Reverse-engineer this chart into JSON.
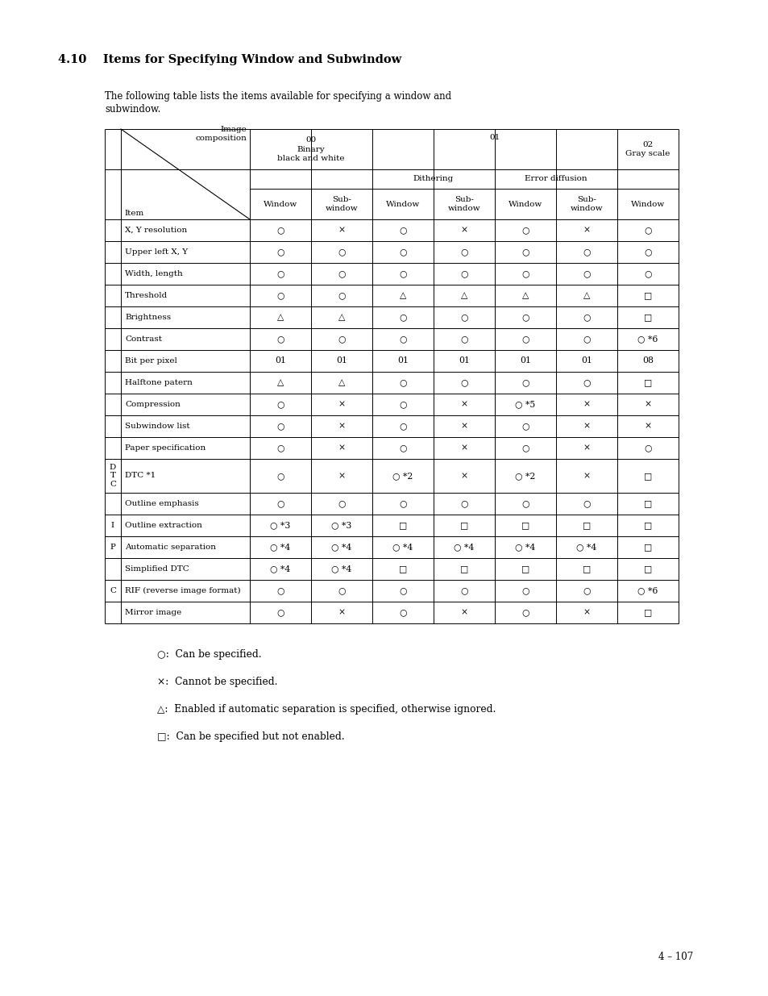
{
  "title": "4.10    Items for Specifying Window and Subwindow",
  "intro_line1": "The following table lists the items available for specifying a window and",
  "intro_line2": "subwindow.",
  "page_number": "4 – 107",
  "legend": [
    [
      "○",
      "Can be specified."
    ],
    [
      "×",
      "Cannot be specified."
    ],
    [
      "△",
      "Enabled if automatic separation is specified, otherwise ignored."
    ],
    [
      "□",
      "Can be specified but not enabled."
    ]
  ],
  "rows": [
    [
      "X, Y resolution",
      "○",
      "×",
      "○",
      "×",
      "○",
      "×",
      "○"
    ],
    [
      "Upper left X, Y",
      "○",
      "○",
      "○",
      "○",
      "○",
      "○",
      "○"
    ],
    [
      "Width, length",
      "○",
      "○",
      "○",
      "○",
      "○",
      "○",
      "○"
    ],
    [
      "Threshold",
      "○",
      "○",
      "△",
      "△",
      "△",
      "△",
      "□"
    ],
    [
      "Brightness",
      "△",
      "△",
      "○",
      "○",
      "○",
      "○",
      "□"
    ],
    [
      "Contrast",
      "○",
      "○",
      "○",
      "○",
      "○",
      "○",
      "○ *6"
    ],
    [
      "Bit per pixel",
      "01",
      "01",
      "01",
      "01",
      "01",
      "01",
      "08"
    ],
    [
      "Halftone patern",
      "△",
      "△",
      "○",
      "○",
      "○",
      "○",
      "□"
    ],
    [
      "Compression",
      "○",
      "×",
      "○",
      "×",
      "○ *5",
      "×",
      "×"
    ],
    [
      "Subwindow list",
      "○",
      "×",
      "○",
      "×",
      "○",
      "×",
      "×"
    ],
    [
      "Paper specification",
      "○",
      "×",
      "○",
      "×",
      "○",
      "×",
      "○"
    ],
    [
      "DTC *1",
      "○",
      "×",
      "○ *2",
      "×",
      "○ *2",
      "×",
      "□"
    ],
    [
      "Outline emphasis",
      "○",
      "○",
      "○",
      "○",
      "○",
      "○",
      "□"
    ],
    [
      "Outline extraction",
      "○ *3",
      "○ *3",
      "□",
      "□",
      "□",
      "□",
      "□"
    ],
    [
      "Automatic separation",
      "○ *4",
      "○ *4",
      "○ *4",
      "○ *4",
      "○ *4",
      "○ *4",
      "□"
    ],
    [
      "Simplified DTC",
      "○ *4",
      "○ *4",
      "□",
      "□",
      "□",
      "□",
      "□"
    ],
    [
      "RIF (reverse image format)",
      "○",
      "○",
      "○",
      "○",
      "○",
      "○",
      "○ *6"
    ],
    [
      "Mirror image",
      "○",
      "×",
      "○",
      "×",
      "○",
      "×",
      "□"
    ]
  ],
  "left_labels": {
    "DTC *1": "D\nT\nC",
    "Outline emphasis": "",
    "Outline extraction": "I",
    "Automatic separation": "P",
    "Simplified DTC": "",
    "RIF (reverse image format)": "C",
    "Mirror image": ""
  },
  "bg_color": "#ffffff",
  "text_color": "#000000"
}
